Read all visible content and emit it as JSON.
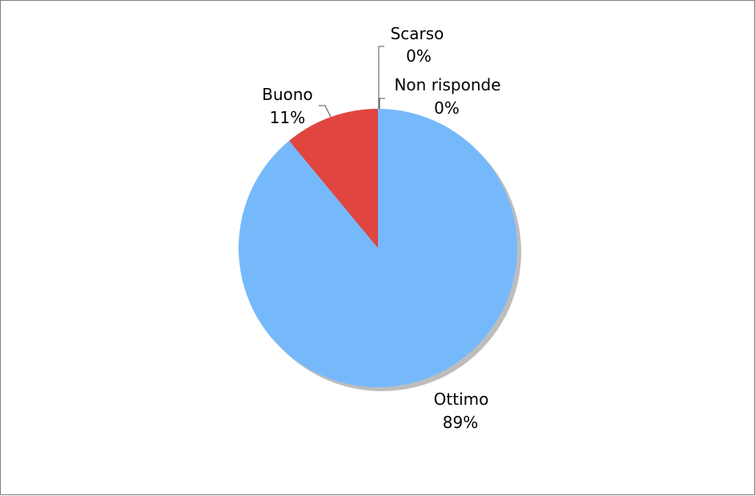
{
  "chart_data": {
    "type": "pie",
    "title": "",
    "slices": [
      {
        "label": "Ottimo",
        "value": 89,
        "display": "89%",
        "color": "#76b9fb"
      },
      {
        "label": "Buono",
        "value": 11,
        "display": "11%",
        "color": "#e04540"
      },
      {
        "label": "Scarso",
        "value": 0,
        "display": "0%",
        "color": "#9b9b9b"
      },
      {
        "label": "Non risponde",
        "value": 0,
        "display": "0%",
        "color": "#9b9b9b"
      }
    ],
    "legend": "none",
    "start_angle_deg": 0,
    "direction": "clockwise",
    "shadow_color": "#bdbdbd",
    "leader_line_color": "#555555"
  }
}
